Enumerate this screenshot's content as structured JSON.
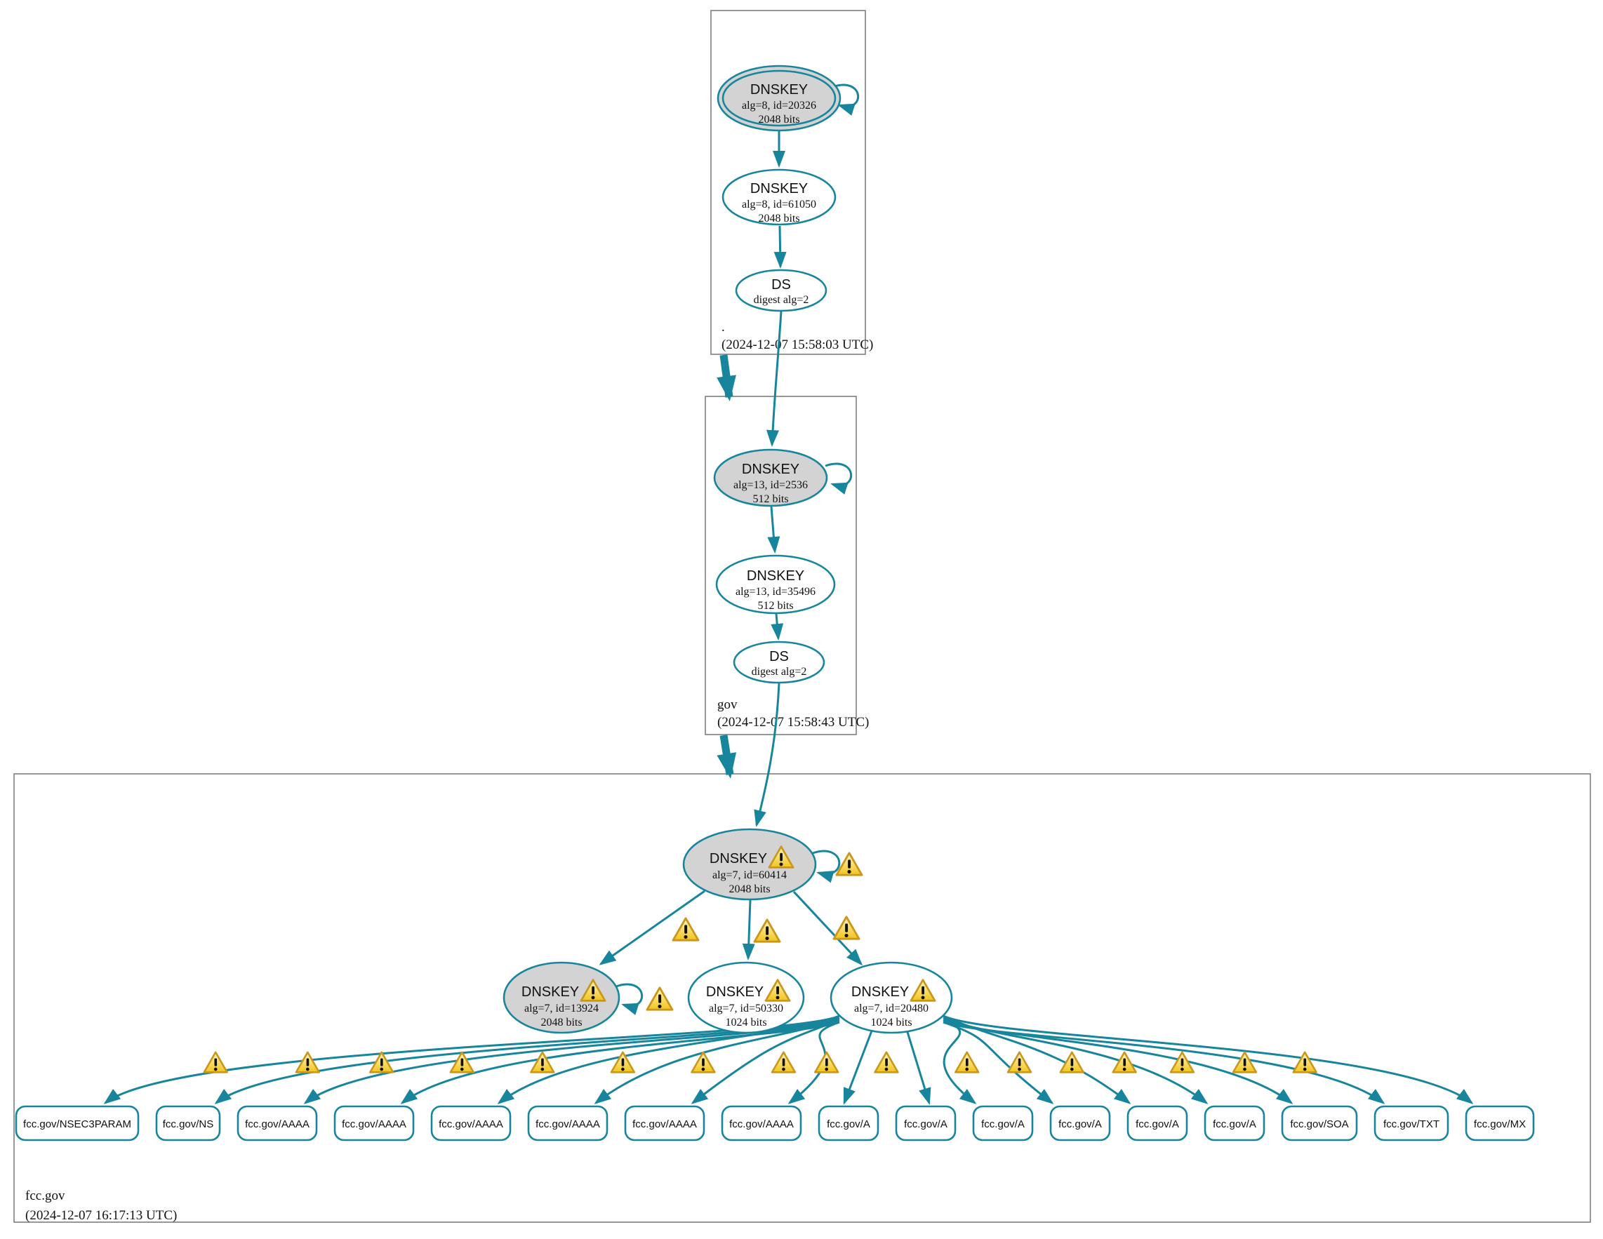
{
  "zones": [
    {
      "name": ".",
      "timestamp": "(2024-12-07 15:58:03 UTC)"
    },
    {
      "name": "gov",
      "timestamp": "(2024-12-07 15:58:43 UTC)"
    },
    {
      "name": "fcc.gov",
      "timestamp": "(2024-12-07 16:17:13 UTC)"
    }
  ],
  "nodes": {
    "root_ksk": {
      "title": "DNSKEY",
      "detail": "alg=8, id=20326",
      "bits": "2048 bits"
    },
    "root_zsk": {
      "title": "DNSKEY",
      "detail": "alg=8, id=61050",
      "bits": "2048 bits"
    },
    "root_ds": {
      "title": "DS",
      "detail": "digest alg=2"
    },
    "gov_ksk": {
      "title": "DNSKEY",
      "detail": "alg=13, id=2536",
      "bits": "512 bits"
    },
    "gov_zsk": {
      "title": "DNSKEY",
      "detail": "alg=13, id=35496",
      "bits": "512 bits"
    },
    "gov_ds": {
      "title": "DS",
      "detail": "digest alg=2"
    },
    "fcc_ksk": {
      "title": "DNSKEY",
      "detail": "alg=7, id=60414",
      "bits": "2048 bits"
    },
    "fcc_key_13924": {
      "title": "DNSKEY",
      "detail": "alg=7, id=13924",
      "bits": "2048 bits"
    },
    "fcc_key_50330": {
      "title": "DNSKEY",
      "detail": "alg=7, id=50330",
      "bits": "1024 bits"
    },
    "fcc_key_20480": {
      "title": "DNSKEY",
      "detail": "alg=7, id=20480",
      "bits": "1024 bits"
    }
  },
  "rrsets": [
    {
      "label": "fcc.gov/NSEC3PARAM"
    },
    {
      "label": "fcc.gov/NS"
    },
    {
      "label": "fcc.gov/AAAA"
    },
    {
      "label": "fcc.gov/AAAA"
    },
    {
      "label": "fcc.gov/AAAA"
    },
    {
      "label": "fcc.gov/AAAA"
    },
    {
      "label": "fcc.gov/AAAA"
    },
    {
      "label": "fcc.gov/AAAA"
    },
    {
      "label": "fcc.gov/A"
    },
    {
      "label": "fcc.gov/A"
    },
    {
      "label": "fcc.gov/A"
    },
    {
      "label": "fcc.gov/A"
    },
    {
      "label": "fcc.gov/A"
    },
    {
      "label": "fcc.gov/A"
    },
    {
      "label": "fcc.gov/SOA"
    },
    {
      "label": "fcc.gov/TXT"
    },
    {
      "label": "fcc.gov/MX"
    }
  ],
  "colors": {
    "edge_teal": "#17859c",
    "ksk_fill_gray": "#d3d3d3",
    "zone_border_gray": "#7f7f7f",
    "warning_yellow": "#f8d12e",
    "warning_border_gold": "#c9971c"
  }
}
